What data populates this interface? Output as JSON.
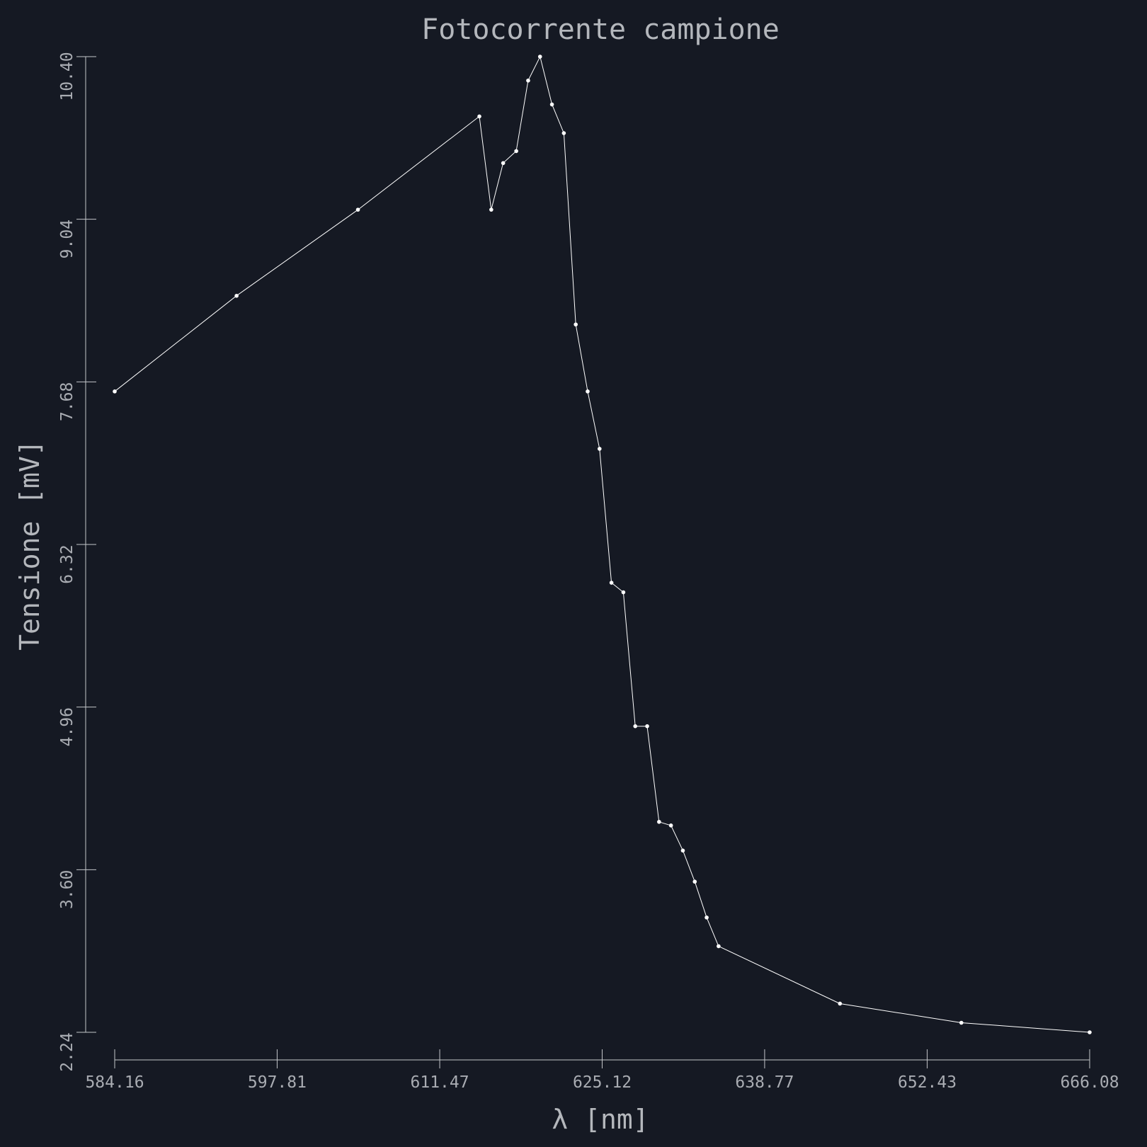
{
  "chart_data": {
    "type": "line",
    "title": "Fotocorrente campione",
    "xlabel": "λ [nm]",
    "ylabel": "Tensione [mV]",
    "xlim": [
      584.16,
      666.08
    ],
    "ylim": [
      2.24,
      10.4
    ],
    "x_ticks": [
      "584.16",
      "597.81",
      "611.47",
      "625.12",
      "638.77",
      "652.43",
      "666.08"
    ],
    "y_ticks": [
      "2.24",
      "3.60",
      "4.96",
      "6.32",
      "7.68",
      "9.04",
      "10.40"
    ],
    "grid": false,
    "series": [
      {
        "color": "#ffffff",
        "x": [
          584.16,
          594.4,
          604.6,
          614.8,
          615.8,
          616.8,
          617.9,
          618.9,
          619.9,
          620.9,
          621.9,
          622.9,
          623.9,
          624.9,
          625.9,
          626.9,
          627.9,
          628.9,
          629.9,
          630.9,
          631.9,
          632.9,
          633.9,
          634.9,
          645.1,
          655.3,
          666.08
        ],
        "y": [
          7.6,
          8.4,
          9.12,
          9.9,
          9.12,
          9.51,
          9.61,
          10.2,
          10.4,
          10.0,
          9.76,
          8.16,
          7.6,
          7.12,
          6.0,
          5.92,
          4.8,
          4.8,
          4.0,
          3.97,
          3.76,
          3.5,
          3.2,
          2.96,
          2.48,
          2.32,
          2.24
        ]
      }
    ]
  }
}
